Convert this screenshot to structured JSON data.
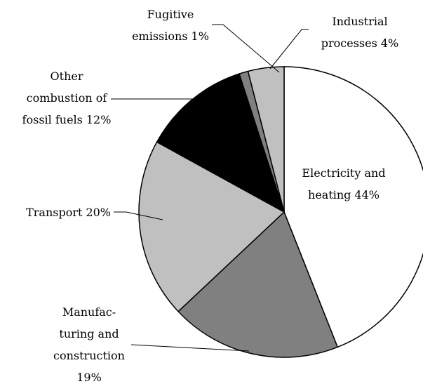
{
  "chart_data": {
    "type": "pie",
    "categories": [
      "Electricity and heating",
      "Manufac-turing and construction",
      "Transport",
      "Other combustion of fossil fuels",
      "Fugitive emissions",
      "Industrial processes"
    ],
    "values": [
      44,
      19,
      20,
      12,
      1,
      4
    ],
    "value_labels": [
      "44%",
      "19%",
      "20%",
      "12%",
      "1%",
      "4%"
    ],
    "colors": [
      "#ffffff",
      "#808080",
      "#c0c0c0",
      "#000000",
      "#808080",
      "#c0c0c0"
    ]
  }
}
